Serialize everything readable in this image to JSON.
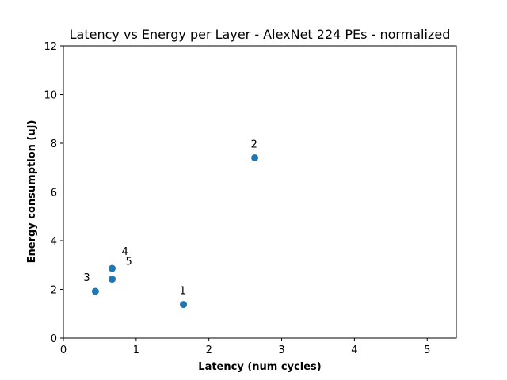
{
  "chart_data": {
    "type": "scatter",
    "title": "Latency vs Energy per Layer - AlexNet 224 PEs - normalized",
    "xlabel": "Latency (num cycles)",
    "ylabel": "Energy consumption (uJ)",
    "xlim": [
      0,
      5.4
    ],
    "ylim": [
      0,
      12
    ],
    "xticks": [
      0,
      1,
      2,
      3,
      4,
      5
    ],
    "yticks": [
      0,
      2,
      4,
      6,
      8,
      10,
      12
    ],
    "grid": false,
    "marker_color": "#1f77b4",
    "points": [
      {
        "label": "1",
        "x": 1.65,
        "y": 1.38
      },
      {
        "label": "2",
        "x": 2.63,
        "y": 7.4
      },
      {
        "label": "3",
        "x": 0.44,
        "y": 1.92
      },
      {
        "label": "4",
        "x": 0.67,
        "y": 2.86
      },
      {
        "label": "5",
        "x": 0.67,
        "y": 2.42
      }
    ]
  }
}
